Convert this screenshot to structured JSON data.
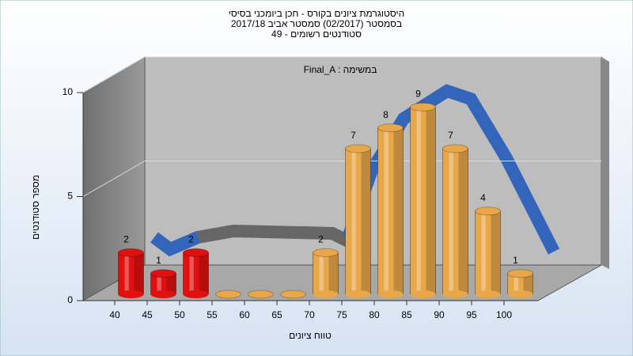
{
  "chart_data": {
    "type": "bar",
    "title": [
      "היסטוגרמת ציונים בקורס - חכן ביומכני בסיסי",
      "בסמסטר  (02/2017)  סמסטר אביב 2017/18",
      "סטודנטים רשומים - 49"
    ],
    "annotation": "Final_A : במשימה",
    "x_label": "טווח ציונים",
    "y_label": "מספר סטודנטים",
    "categories": [
      "40",
      "45",
      "50",
      "55",
      "60",
      "65",
      "70",
      "75",
      "80",
      "85",
      "90",
      "95",
      "100"
    ],
    "values": [
      2,
      1,
      2,
      0,
      0,
      0,
      2,
      7,
      8,
      9,
      7,
      4,
      1
    ],
    "colors": [
      "#e01010",
      "#e01010",
      "#e01010",
      "#e8a84a",
      "#e8a84a",
      "#e8a84a",
      "#e8a84a",
      "#e8a84a",
      "#e8a84a",
      "#e8a84a",
      "#e8a84a",
      "#e8a84a",
      "#e8a84a"
    ],
    "ylim": [
      0,
      10
    ],
    "yticks": [
      0,
      5,
      10
    ],
    "grid": true
  }
}
